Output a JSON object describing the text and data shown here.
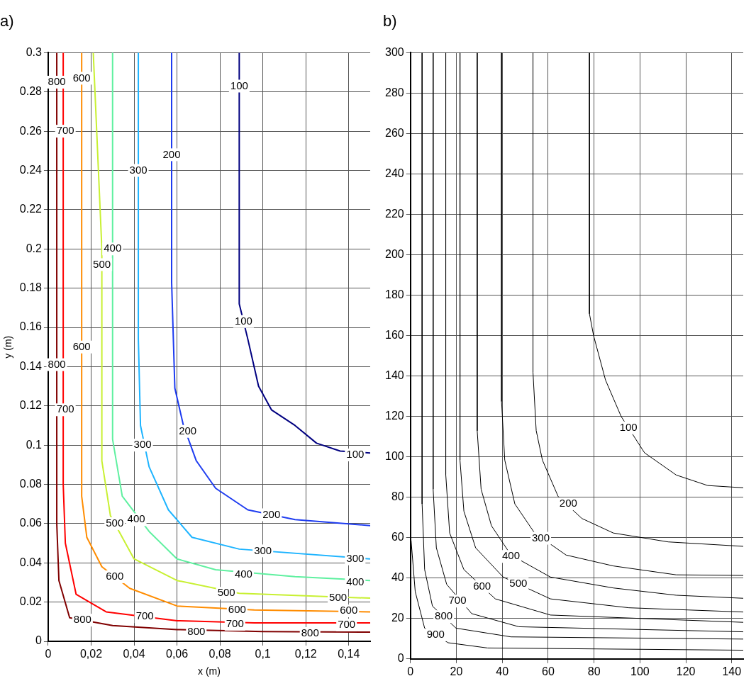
{
  "chart_data": [
    {
      "type": "line",
      "title": "a)",
      "xlabel": "x (m)",
      "ylabel": "y (m)",
      "grid": true,
      "legend": false,
      "marker": "none",
      "line_style": "solid",
      "xlim": [
        0,
        0.15
      ],
      "xticks": [
        0,
        {
          "value": 0.02,
          "label": "0,02"
        },
        {
          "value": 0.04,
          "label": "0,04"
        },
        {
          "value": 0.06,
          "label": "0,06"
        },
        {
          "value": 0.08,
          "label": "0,08"
        },
        {
          "value": 0.1,
          "label": "0,1"
        },
        {
          "value": 0.12,
          "label": "0,12"
        },
        {
          "value": 0.14,
          "label": "0,14"
        }
      ],
      "ylim": [
        0,
        0.3
      ],
      "yticks": [
        0,
        0.02,
        0.04,
        0.06,
        0.08,
        0.1,
        0.12,
        0.14,
        0.16,
        0.18,
        0.2,
        0.22,
        0.24,
        0.26,
        0.28,
        0.3
      ],
      "series": [
        {
          "color": "#800000",
          "x": [
            0.004,
            0.004,
            0.005,
            0.01,
            0.03,
            0.06,
            0.1,
            0.15
          ],
          "values": [
            0.3,
            0.06,
            0.031,
            0.012,
            0.008,
            0.006,
            0.005,
            0.0047
          ]
        },
        {
          "color": "#ff0000",
          "x": [
            0.007,
            0.007,
            0.008,
            0.013,
            0.027,
            0.06,
            0.096,
            0.15
          ],
          "values": [
            0.3,
            0.08,
            0.05,
            0.024,
            0.015,
            0.0105,
            0.0094,
            0.0094
          ]
        },
        {
          "color": "#ff8c00",
          "x": [
            0.0156,
            0.0156,
            0.018,
            0.025,
            0.038,
            0.06,
            0.096,
            0.15
          ],
          "values": [
            0.3,
            0.074,
            0.053,
            0.038,
            0.027,
            0.018,
            0.016,
            0.015
          ]
        },
        {
          "color": "#c8f032",
          "x": [
            0.021,
            0.025,
            0.025,
            0.029,
            0.04,
            0.06,
            0.089,
            0.15
          ],
          "values": [
            0.3,
            0.2,
            0.092,
            0.064,
            0.042,
            0.031,
            0.0245,
            0.022
          ]
        },
        {
          "color": "#5ff0a0",
          "x": [
            0.03,
            0.03,
            0.0345,
            0.047,
            0.06,
            0.078,
            0.115,
            0.15
          ],
          "values": [
            0.3,
            0.103,
            0.074,
            0.056,
            0.042,
            0.0365,
            0.033,
            0.031
          ]
        },
        {
          "color": "#1eb4ff",
          "x": [
            0.042,
            0.042,
            0.043,
            0.047,
            0.056,
            0.067,
            0.089,
            0.15
          ],
          "values": [
            0.3,
            0.154,
            0.11,
            0.089,
            0.067,
            0.053,
            0.047,
            0.042
          ]
        },
        {
          "color": "#1e3cf0",
          "x": [
            0.0575,
            0.0575,
            0.059,
            0.063,
            0.069,
            0.078,
            0.093,
            0.115,
            0.15
          ],
          "values": [
            0.3,
            0.183,
            0.129,
            0.11,
            0.092,
            0.078,
            0.067,
            0.062,
            0.059
          ]
        },
        {
          "color": "#000080",
          "x": [
            0.089,
            0.089,
            0.093,
            0.098,
            0.104,
            0.115,
            0.125,
            0.136,
            0.15
          ],
          "values": [
            0.3,
            0.172,
            0.154,
            0.13,
            0.118,
            0.11,
            0.101,
            0.097,
            0.096
          ]
        }
      ],
      "annotations": [
        {
          "text": "800",
          "x": 0.004,
          "y": 0.285
        },
        {
          "text": "800",
          "x": 0.004,
          "y": 0.141
        },
        {
          "text": "800",
          "x": 0.016,
          "y": 0.0108
        },
        {
          "text": "800",
          "x": 0.069,
          "y": 0.0047
        },
        {
          "text": "800",
          "x": 0.122,
          "y": 0.004
        },
        {
          "text": "700",
          "x": 0.008,
          "y": 0.26
        },
        {
          "text": "700",
          "x": 0.008,
          "y": 0.118
        },
        {
          "text": "700",
          "x": 0.045,
          "y": 0.01255
        },
        {
          "text": "700",
          "x": 0.087,
          "y": 0.0087
        },
        {
          "text": "700",
          "x": 0.139,
          "y": 0.0083
        },
        {
          "text": "600",
          "x": 0.0156,
          "y": 0.287
        },
        {
          "text": "600",
          "x": 0.0156,
          "y": 0.15
        },
        {
          "text": "600",
          "x": 0.031,
          "y": 0.0329
        },
        {
          "text": "600",
          "x": 0.088,
          "y": 0.016
        },
        {
          "text": "600",
          "x": 0.14,
          "y": 0.0155
        },
        {
          "text": "500",
          "x": 0.025,
          "y": 0.192
        },
        {
          "text": "500",
          "x": 0.031,
          "y": 0.06
        },
        {
          "text": "500",
          "x": 0.083,
          "y": 0.0245
        },
        {
          "text": "500",
          "x": 0.135,
          "y": 0.022
        },
        {
          "text": "400",
          "x": 0.03,
          "y": 0.2
        },
        {
          "text": "400",
          "x": 0.041,
          "y": 0.062
        },
        {
          "text": "400",
          "x": 0.091,
          "y": 0.034
        },
        {
          "text": "400",
          "x": 0.143,
          "y": 0.03
        },
        {
          "text": "300",
          "x": 0.042,
          "y": 0.24
        },
        {
          "text": "300",
          "x": 0.044,
          "y": 0.1
        },
        {
          "text": "300",
          "x": 0.1,
          "y": 0.0461
        },
        {
          "text": "300",
          "x": 0.143,
          "y": 0.042
        },
        {
          "text": "200",
          "x": 0.0575,
          "y": 0.248
        },
        {
          "text": "200",
          "x": 0.065,
          "y": 0.107
        },
        {
          "text": "200",
          "x": 0.104,
          "y": 0.0645
        },
        {
          "text": "100",
          "x": 0.089,
          "y": 0.283
        },
        {
          "text": "100",
          "x": 0.091,
          "y": 0.163
        },
        {
          "text": "100",
          "x": 0.143,
          "y": 0.095
        }
      ]
    },
    {
      "type": "line",
      "title": "b)",
      "grid": true,
      "legend": false,
      "marker": "none",
      "line_style": "solid",
      "xlim": [
        0,
        145
      ],
      "xticks": [
        0,
        20,
        40,
        60,
        80,
        100,
        120,
        140
      ],
      "ylim": [
        0,
        300
      ],
      "yticks": [
        0,
        20,
        40,
        60,
        80,
        100,
        120,
        140,
        160,
        180,
        200,
        220,
        240,
        260,
        280,
        300
      ],
      "series": [
        {
          "color": "#000000",
          "x": [
            78,
            78,
            79.8,
            85,
            91.8,
            102,
            115.8,
            129.5,
            145
          ],
          "values": [
            300,
            170.8,
            160,
            138,
            120,
            102,
            91,
            85.8,
            84.7
          ]
        },
        {
          "color": "#000000",
          "x": [
            53.4,
            53.4,
            54.8,
            57.5,
            64.4,
            74.7,
            88.4,
            112.3,
            145
          ],
          "values": [
            300,
            141.9,
            113,
            98.4,
            80.3,
            69.5,
            62.3,
            57.9,
            55.7
          ]
        },
        {
          "color": "#000000",
          "x": [
            39.7,
            39.7,
            41.1,
            45.5,
            54.1,
            67.8,
            88.4,
            115.8,
            145
          ],
          "values": [
            300,
            127.4,
            98.4,
            76.7,
            62.3,
            51.4,
            46,
            41.6,
            41.3
          ]
        },
        {
          "color": "#000000",
          "x": [
            29.1,
            29.1,
            30.8,
            35.3,
            43.8,
            61,
            88.4,
            115.8,
            145
          ],
          "values": [
            300,
            112.9,
            84,
            65.9,
            51.4,
            40.5,
            35.1,
            31.5,
            30
          ]
        },
        {
          "color": "#000000",
          "x": [
            21.6,
            21.6,
            23.3,
            28.4,
            40.4,
            61,
            95.2,
            145
          ],
          "values": [
            300,
            98.4,
            73.1,
            55,
            40.5,
            29.7,
            25.3,
            23.2
          ]
        },
        {
          "color": "#000000",
          "x": [
            15.4,
            15.4,
            17.1,
            23.3,
            37,
            61,
            145
          ],
          "values": [
            300,
            91.2,
            62.3,
            44.2,
            29.7,
            21.7,
            18.1
          ]
        },
        {
          "color": "#000000",
          "x": [
            9.9,
            9.9,
            11.3,
            15.8,
            26.7,
            47.3,
            145
          ],
          "values": [
            300,
            84,
            55,
            36.9,
            22.4,
            15.9,
            13.4
          ]
        },
        {
          "color": "#000000",
          "x": [
            5.1,
            5.1,
            6.2,
            9.6,
            19.9,
            43.8,
            145
          ],
          "values": [
            300,
            76.7,
            44.2,
            26.1,
            15.2,
            10.9,
            9.8
          ]
        },
        {
          "color": "#000000",
          "x": [
            0.3,
            2.1,
            6.2,
            16.4,
            33.6,
            145
          ],
          "values": [
            58.6,
            33.3,
            15.2,
            8,
            5.4,
            4.3
          ]
        }
      ],
      "annotations": [
        {
          "text": "100",
          "x": 95,
          "y": 114.35
        },
        {
          "text": "200",
          "x": 68.8,
          "y": 76.7
        },
        {
          "text": "300",
          "x": 56.8,
          "y": 59.7
        },
        {
          "text": "400",
          "x": 43.8,
          "y": 50.7
        },
        {
          "text": "500",
          "x": 47,
          "y": 37.04
        },
        {
          "text": "600",
          "x": 31.2,
          "y": 35.8
        },
        {
          "text": "700",
          "x": 20.5,
          "y": 28.6
        },
        {
          "text": "800",
          "x": 14.5,
          "y": 20.9
        },
        {
          "text": "900",
          "x": 11,
          "y": 11.81
        }
      ]
    }
  ]
}
